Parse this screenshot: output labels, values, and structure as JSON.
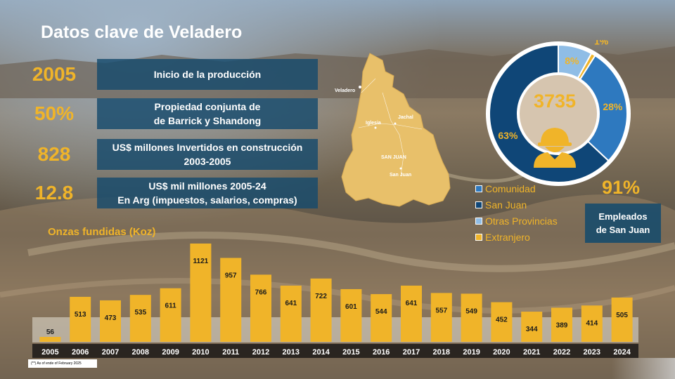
{
  "slide": {
    "title": "Datos clave de Veladero",
    "stats": [
      {
        "value": "2005",
        "text": "Inicio de la producción"
      },
      {
        "value": "50%",
        "text": "Propiedad conjunta de\nde Barrick y Shandong"
      },
      {
        "value": "828",
        "text": "US$ millones Invertidos en construcción\n2003-2005"
      },
      {
        "value": "12.8",
        "text": "US$ mil millones 2005-24\nEn Arg (impuestos, salarios, compras)"
      }
    ],
    "map_labels": {
      "veladero": "Veladero",
      "jachal": "Jachal",
      "iglesia": "Iglesia",
      "province": "SAN JUAN",
      "capital": "San Juan"
    },
    "employees": {
      "total": "3735",
      "slices": [
        {
          "label": "San Juan",
          "percent": 63,
          "percent_text": "63%",
          "color": "#0f4677"
        },
        {
          "label": "Comunidad",
          "percent": 28,
          "percent_text": "28%",
          "color": "#2e79bf"
        },
        {
          "label": "Otras Provincias",
          "percent": 8,
          "percent_text": "8%",
          "color": "#8fbde6"
        },
        {
          "label": "Extranjero",
          "percent": 1,
          "percent_text": "1%",
          "color": "#f0b429"
        }
      ],
      "legend": [
        {
          "label": "Comunidad",
          "color": "#2e79bf"
        },
        {
          "label": "San Juan",
          "color": "#0f4677"
        },
        {
          "label": "Otras Provincias",
          "color": "#8fbde6"
        },
        {
          "label": "Extranjero",
          "color": "#f0b429"
        }
      ],
      "highlight_value": "91%",
      "highlight_text": "Empleados\nde San Juan"
    },
    "footnote": "(**) As of ende of February 2025",
    "accent_color": "#f0b429",
    "box_color": "#164b6c"
  },
  "chart_data": {
    "type": "bar",
    "title": "Onzas fundidas (Koz)",
    "categories": [
      "2005",
      "2006",
      "2007",
      "2008",
      "2009",
      "2010",
      "2011",
      "2012",
      "2013",
      "2014",
      "2015",
      "2016",
      "2017",
      "2018",
      "2019",
      "2020",
      "2021",
      "2022",
      "2023",
      "2024"
    ],
    "values": [
      56,
      513,
      473,
      535,
      611,
      1121,
      957,
      766,
      641,
      722,
      601,
      544,
      641,
      557,
      549,
      452,
      344,
      389,
      414,
      505
    ],
    "ylim": [
      0,
      1121
    ],
    "grid": false,
    "bar_color": "#f0b429"
  }
}
